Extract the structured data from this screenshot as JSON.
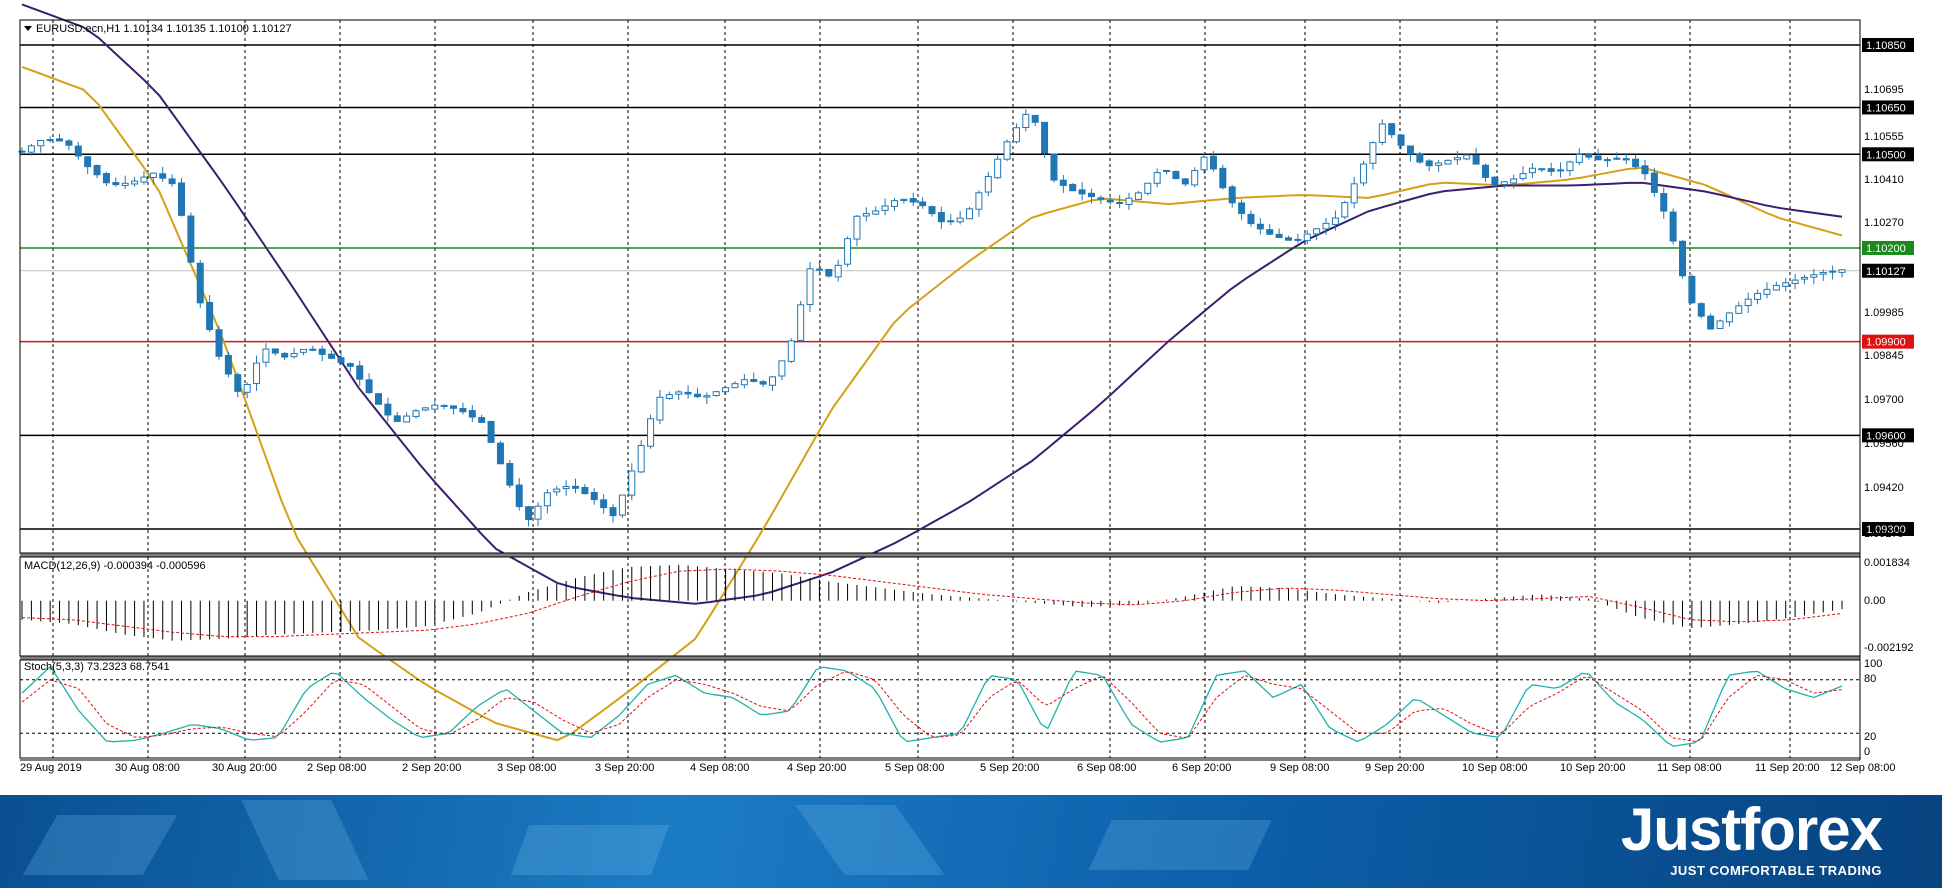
{
  "chart_data": [
    {
      "type": "candlestick",
      "header": "EURUSD.ecn,H1  1.10134 1.10135 1.10100 1.10127",
      "symbol": "EURUSD.ecn",
      "timeframe": "H1",
      "last_ohlc": {
        "open": 1.10134,
        "high": 1.10135,
        "low": 1.101,
        "close": 1.10127
      },
      "current_price_label": "1.10127",
      "ylim": [
        1.09275,
        1.1085
      ],
      "y_ticks": [
        "1.10695",
        "1.10555",
        "1.10410",
        "1.10270",
        "1.09985",
        "1.09845",
        "1.09700",
        "1.09560",
        "1.09420",
        "1.09275"
      ],
      "x_ticks": [
        "29 Aug 2019",
        "30 Aug 08:00",
        "30 Aug 20:00",
        "2 Sep 08:00",
        "2 Sep 20:00",
        "3 Sep 08:00",
        "3 Sep 20:00",
        "4 Sep 08:00",
        "4 Sep 20:00",
        "5 Sep 08:00",
        "5 Sep 20:00",
        "6 Sep 08:00",
        "6 Sep 20:00",
        "9 Sep 08:00",
        "9 Sep 20:00",
        "10 Sep 08:00",
        "10 Sep 20:00",
        "11 Sep 08:00",
        "11 Sep 20:00",
        "12 Sep 08:00"
      ],
      "levels": [
        {
          "price": 1.1085,
          "label": "1.10850",
          "color": "#000000"
        },
        {
          "price": 1.1065,
          "label": "1.10650",
          "color": "#000000"
        },
        {
          "price": 1.105,
          "label": "1.10500",
          "color": "#000000"
        },
        {
          "price": 1.102,
          "label": "1.10200",
          "color": "#1a8a1a"
        },
        {
          "price": 1.099,
          "label": "1.09900",
          "color": "#e01010"
        },
        {
          "price": 1.096,
          "label": "1.09600",
          "color": "#000000"
        },
        {
          "price": 1.093,
          "label": "1.09300",
          "color": "#000000"
        }
      ],
      "candle_color": "#1f77b4",
      "ohlc_anchors": [
        [
          1.1046,
          1.1055,
          1.104,
          1.1051
        ],
        [
          1.1051,
          1.1058,
          1.1048,
          1.1055
        ],
        [
          1.1055,
          1.1059,
          1.105,
          1.1054
        ],
        [
          1.1054,
          1.1057,
          1.1042,
          1.1046
        ],
        [
          1.1046,
          1.1048,
          1.1034,
          1.104
        ],
        [
          1.104,
          1.1045,
          1.1036,
          1.1041
        ],
        [
          1.1041,
          1.1049,
          1.1037,
          1.1044
        ],
        [
          1.1044,
          1.105,
          1.1038,
          1.104
        ],
        [
          1.104,
          1.1042,
          1.1,
          1.1005
        ],
        [
          1.1005,
          1.1008,
          1.098,
          1.0985
        ],
        [
          1.0985,
          1.099,
          1.0965,
          1.0972
        ],
        [
          1.0972,
          1.0992,
          1.0968,
          1.0988
        ],
        [
          1.0988,
          1.0996,
          1.0982,
          1.0985
        ],
        [
          1.0985,
          1.0992,
          1.098,
          1.0988
        ],
        [
          1.0988,
          1.0992,
          1.0982,
          1.0985
        ],
        [
          1.0985,
          1.099,
          1.0978,
          1.0982
        ],
        [
          1.0982,
          1.0985,
          1.0968,
          1.0972
        ],
        [
          1.0972,
          1.0976,
          1.096,
          1.0964
        ],
        [
          1.0964,
          1.0972,
          1.096,
          1.0968
        ],
        [
          1.0968,
          1.0974,
          1.0963,
          1.097
        ],
        [
          1.097,
          1.0974,
          1.0964,
          1.0968
        ],
        [
          1.0968,
          1.0972,
          1.0962,
          1.0964
        ],
        [
          1.0964,
          1.0966,
          1.0945,
          1.0948
        ],
        [
          1.0948,
          1.095,
          1.0928,
          1.0932
        ],
        [
          1.0932,
          1.0945,
          1.093,
          1.0942
        ],
        [
          1.0942,
          1.095,
          1.0935,
          1.0944
        ],
        [
          1.0944,
          1.0952,
          1.0938,
          1.094
        ],
        [
          1.094,
          1.0946,
          1.0926,
          1.0934
        ],
        [
          1.0934,
          1.0955,
          1.093,
          1.0952
        ],
        [
          1.0952,
          1.0975,
          1.095,
          1.0972
        ],
        [
          1.0972,
          1.0978,
          1.0966,
          1.0974
        ],
        [
          1.0974,
          1.098,
          1.0968,
          1.0972
        ],
        [
          1.0972,
          1.0978,
          1.0968,
          1.0975
        ],
        [
          1.0975,
          1.0982,
          1.0972,
          1.0978
        ],
        [
          1.0978,
          1.0984,
          1.0973,
          1.0976
        ],
        [
          1.0976,
          1.099,
          1.0974,
          1.0988
        ],
        [
          1.0988,
          1.1018,
          1.0985,
          1.1015
        ],
        [
          1.1015,
          1.1022,
          1.1005,
          1.101
        ],
        [
          1.101,
          1.1035,
          1.1008,
          1.103
        ],
        [
          1.103,
          1.1038,
          1.1022,
          1.1032
        ],
        [
          1.1032,
          1.104,
          1.1028,
          1.1036
        ],
        [
          1.1036,
          1.104,
          1.103,
          1.1034
        ],
        [
          1.1034,
          1.1038,
          1.1024,
          1.1028
        ],
        [
          1.1028,
          1.1035,
          1.1022,
          1.103
        ],
        [
          1.103,
          1.1045,
          1.1026,
          1.1042
        ],
        [
          1.1042,
          1.1058,
          1.1038,
          1.1055
        ],
        [
          1.1055,
          1.1085,
          1.105,
          1.1065
        ],
        [
          1.1065,
          1.1082,
          1.1038,
          1.1042
        ],
        [
          1.1042,
          1.1046,
          1.1034,
          1.1038
        ],
        [
          1.1038,
          1.1042,
          1.1032,
          1.1036
        ],
        [
          1.1036,
          1.104,
          1.103,
          1.1034
        ],
        [
          1.1034,
          1.1042,
          1.103,
          1.1038
        ],
        [
          1.1038,
          1.105,
          1.1034,
          1.1046
        ],
        [
          1.1046,
          1.105,
          1.1036,
          1.104
        ],
        [
          1.104,
          1.1058,
          1.1036,
          1.105
        ],
        [
          1.105,
          1.1055,
          1.103,
          1.1036
        ],
        [
          1.1036,
          1.104,
          1.1024,
          1.1028
        ],
        [
          1.1028,
          1.1034,
          1.102,
          1.1024
        ],
        [
          1.1024,
          1.103,
          1.1016,
          1.1022
        ],
        [
          1.1022,
          1.103,
          1.1018,
          1.1026
        ],
        [
          1.1026,
          1.1034,
          1.1022,
          1.103
        ],
        [
          1.103,
          1.1046,
          1.1024,
          1.1044
        ],
        [
          1.1044,
          1.1065,
          1.104,
          1.106
        ],
        [
          1.106,
          1.1066,
          1.1048,
          1.1052
        ],
        [
          1.1052,
          1.1055,
          1.1042,
          1.1046
        ],
        [
          1.1046,
          1.1052,
          1.104,
          1.1048
        ],
        [
          1.1048,
          1.1058,
          1.1042,
          1.105
        ],
        [
          1.105,
          1.1054,
          1.1036,
          1.104
        ],
        [
          1.104,
          1.1046,
          1.1034,
          1.1042
        ],
        [
          1.1042,
          1.105,
          1.1038,
          1.1046
        ],
        [
          1.1046,
          1.105,
          1.104,
          1.1044
        ],
        [
          1.1044,
          1.1052,
          1.104,
          1.105
        ],
        [
          1.105,
          1.1054,
          1.1044,
          1.1048
        ],
        [
          1.1048,
          1.1052,
          1.1044,
          1.1049
        ],
        [
          1.1049,
          1.1052,
          1.104,
          1.1044
        ],
        [
          1.1044,
          1.1048,
          1.1025,
          1.103
        ],
        [
          1.103,
          1.1032,
          1.1,
          1.1004
        ],
        [
          1.1004,
          1.1008,
          1.0985,
          1.0994
        ],
        [
          1.0994,
          1.1004,
          1.099,
          1.1
        ],
        [
          1.1,
          1.1008,
          1.0996,
          1.1005
        ],
        [
          1.1005,
          1.1012,
          1.1,
          1.1008
        ],
        [
          1.1008,
          1.1014,
          1.1004,
          1.101
        ],
        [
          1.101,
          1.1016,
          1.1006,
          1.1012
        ],
        [
          1.1012,
          1.1016,
          1.1008,
          1.1013
        ]
      ]
    },
    {
      "type": "macd_histogram",
      "label": "MACD(12,26,9) -0.000394 -0.000596",
      "ylim": [
        -0.002192,
        0.001834
      ],
      "y_ticks": [
        "0.001834",
        "0.00",
        "-0.002192"
      ],
      "main_anchors": [
        -0.0009,
        -0.0011,
        -0.0016,
        -0.0019,
        -0.0018,
        -0.0016,
        -0.0015,
        -0.0014,
        -0.0012,
        -0.0006,
        0.0004,
        0.0011,
        0.0016,
        0.0017,
        0.0015,
        0.0013,
        0.0009,
        0.0006,
        0.0003,
        0.0001,
        -0.0001,
        -0.0003,
        -0.0002,
        0.0002,
        0.0007,
        0.0006,
        0.0003,
        0.0001,
        -0.0001,
        0.0001,
        0.0003,
        0.0001,
        -0.0008,
        -0.0013,
        -0.0011,
        -0.0008,
        -0.0004
      ],
      "signal_anchors": [
        -0.0008,
        -0.0009,
        -0.0012,
        -0.0015,
        -0.0017,
        -0.0017,
        -0.0016,
        -0.0015,
        -0.0014,
        -0.0011,
        -0.0006,
        0.0002,
        0.0009,
        0.0014,
        0.0015,
        0.0014,
        0.0012,
        0.0009,
        0.0006,
        0.0003,
        0.0001,
        -0.0001,
        -0.0002,
        0.0,
        0.0004,
        0.0006,
        0.0005,
        0.0003,
        0.0001,
        0.0,
        0.0001,
        0.0002,
        -0.0003,
        -0.0009,
        -0.001,
        -0.0009,
        -0.0006
      ]
    },
    {
      "type": "stochastic",
      "label": "Stoch(5,3,3) 73.2323 68.7541",
      "ylim": [
        0,
        100
      ],
      "y_ticks": [
        "100",
        "80",
        "20",
        "0"
      ],
      "k_anchors": [
        65,
        95,
        45,
        10,
        12,
        20,
        30,
        25,
        12,
        15,
        70,
        90,
        60,
        35,
        15,
        20,
        50,
        70,
        45,
        20,
        15,
        40,
        75,
        85,
        65,
        60,
        40,
        45,
        95,
        90,
        70,
        10,
        15,
        20,
        85,
        80,
        20,
        90,
        85,
        30,
        10,
        15,
        85,
        90,
        60,
        75,
        25,
        10,
        30,
        60,
        40,
        20,
        15,
        75,
        70,
        90,
        55,
        35,
        5,
        10,
        85,
        90,
        70,
        60,
        73
      ],
      "d_anchors": [
        55,
        80,
        70,
        30,
        15,
        18,
        25,
        27,
        20,
        16,
        45,
        80,
        75,
        50,
        25,
        18,
        35,
        60,
        55,
        35,
        20,
        30,
        60,
        80,
        75,
        65,
        50,
        45,
        75,
        90,
        80,
        40,
        15,
        18,
        60,
        80,
        50,
        70,
        85,
        55,
        20,
        14,
        60,
        85,
        75,
        70,
        45,
        20,
        20,
        45,
        48,
        30,
        18,
        50,
        65,
        85,
        65,
        45,
        15,
        10,
        60,
        85,
        80,
        65,
        69
      ]
    }
  ],
  "moving_averages": [
    {
      "color": "#d4a017",
      "anchors": [
        1.1078,
        1.107,
        1.104,
        1.099,
        1.093,
        1.0895,
        1.088,
        1.0868,
        1.0862,
        1.0878,
        1.0895,
        1.093,
        1.0968,
        1.0998,
        1.1015,
        1.103,
        1.1036,
        1.1034,
        1.1036,
        1.1037,
        1.1036,
        1.1041,
        1.104,
        1.1042,
        1.1046,
        1.104,
        1.103,
        1.1024
      ]
    },
    {
      "color": "#3c1e6e",
      "anchors": [
        1.1098,
        1.109,
        1.107,
        1.104,
        1.1008,
        1.0975,
        1.0948,
        1.0924,
        1.0912,
        1.0908,
        1.0906,
        1.0909,
        1.0916,
        1.0926,
        1.0938,
        1.0952,
        1.097,
        1.099,
        1.1008,
        1.1022,
        1.1032,
        1.1038,
        1.104,
        1.104,
        1.1041,
        1.1038,
        1.1033,
        1.103
      ]
    }
  ],
  "branding": {
    "name": "Justforex",
    "tagline": "JUST COMFORTABLE TRADING"
  },
  "colors": {
    "candle": "#1f77b4",
    "grid": "#000000",
    "separator": "#7f7f7f"
  }
}
